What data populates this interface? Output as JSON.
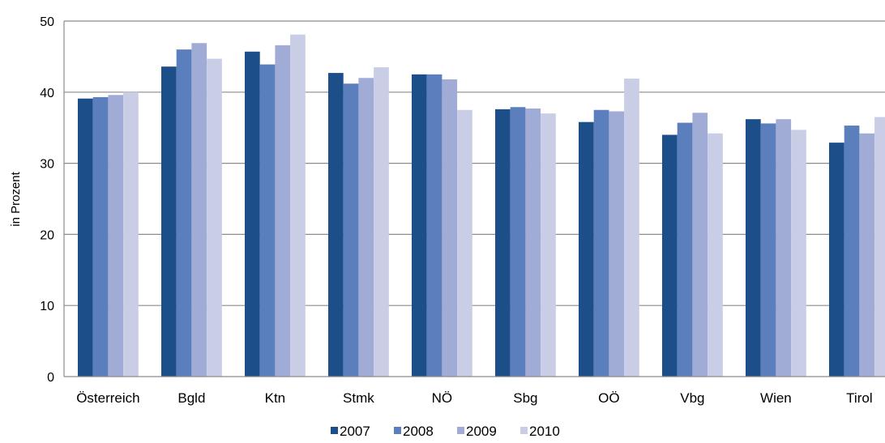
{
  "chart_data": {
    "type": "bar",
    "ylabel": "in Prozent",
    "xlabel": "",
    "ylim": [
      0,
      50
    ],
    "yticks": [
      0,
      10,
      20,
      30,
      40,
      50
    ],
    "grid": true,
    "legend_position": "bottom",
    "categories": [
      "Österreich",
      "Bgld",
      "Ktn",
      "Stmk",
      "NÖ",
      "Sbg",
      "OÖ",
      "Vbg",
      "Wien",
      "Tirol"
    ],
    "series": [
      {
        "name": "2007",
        "color": "#1c4e89",
        "values": [
          39.1,
          43.6,
          45.7,
          42.7,
          42.5,
          37.6,
          35.8,
          34.0,
          36.2,
          32.9
        ]
      },
      {
        "name": "2008",
        "color": "#5b7fbd",
        "values": [
          39.3,
          46.0,
          43.9,
          41.2,
          42.5,
          37.9,
          37.5,
          35.7,
          35.6,
          35.3
        ]
      },
      {
        "name": "2009",
        "color": "#a0acd6",
        "values": [
          39.6,
          46.9,
          46.6,
          42.0,
          41.8,
          37.7,
          37.3,
          37.1,
          36.2,
          34.2
        ]
      },
      {
        "name": "2010",
        "color": "#c9cde6",
        "values": [
          40.0,
          44.7,
          48.1,
          43.5,
          37.5,
          37.0,
          41.9,
          34.2,
          34.7,
          36.5
        ]
      }
    ]
  }
}
